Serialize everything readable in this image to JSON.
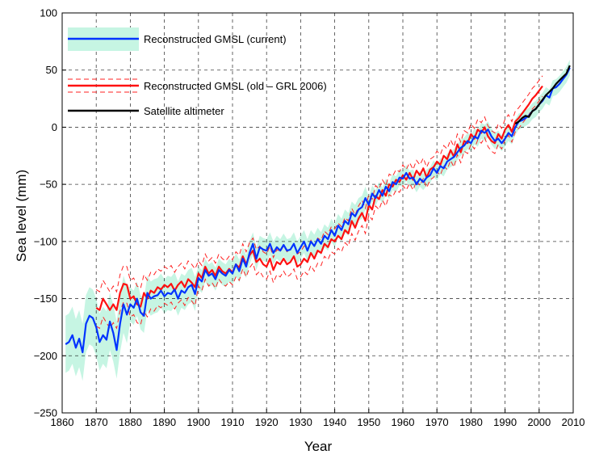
{
  "chart_data": {
    "type": "line",
    "title": "",
    "xlabel": "Year",
    "ylabel": "Sea level (mm)",
    "xlim": [
      1860,
      2010
    ],
    "ylim": [
      -250,
      100
    ],
    "xticks": [
      1860,
      1870,
      1880,
      1890,
      1900,
      1910,
      1920,
      1930,
      1940,
      1950,
      1960,
      1970,
      1980,
      1990,
      2000,
      2010
    ],
    "yticks": [
      -250,
      -200,
      -150,
      -100,
      -50,
      0,
      50,
      100
    ],
    "xtick_labels": [
      "1860",
      "1870",
      "1880",
      "1890",
      "1900",
      "1910",
      "1920",
      "1930",
      "1940",
      "1950",
      "1960",
      "1970",
      "1980",
      "1990",
      "2000",
      "2010"
    ],
    "ytick_labels": [
      "−250",
      "−200",
      "−150",
      "−100",
      "−50",
      "0",
      "50",
      "100"
    ],
    "grid": true,
    "legend_position": "top-left",
    "legend": [
      {
        "label": "Reconstructed GMSL (current)",
        "series": "current"
      },
      {
        "label": "Reconstructed GMSL (old – GRL 2006)",
        "series": "old"
      },
      {
        "label": "Satellite altimeter",
        "series": "altimeter"
      }
    ],
    "series": [
      {
        "key": "current",
        "color": "#0033ff",
        "band_color": "#c6f5e3",
        "x": [
          1861,
          1862,
          1863,
          1864,
          1865,
          1866,
          1867,
          1868,
          1869,
          1870,
          1871,
          1872,
          1873,
          1874,
          1875,
          1876,
          1877,
          1878,
          1879,
          1880,
          1881,
          1882,
          1883,
          1884,
          1885,
          1886,
          1887,
          1888,
          1889,
          1890,
          1891,
          1892,
          1893,
          1894,
          1895,
          1896,
          1897,
          1898,
          1899,
          1900,
          1901,
          1902,
          1903,
          1904,
          1905,
          1906,
          1907,
          1908,
          1909,
          1910,
          1911,
          1912,
          1913,
          1914,
          1915,
          1916,
          1917,
          1918,
          1919,
          1920,
          1921,
          1922,
          1923,
          1924,
          1925,
          1926,
          1927,
          1928,
          1929,
          1930,
          1931,
          1932,
          1933,
          1934,
          1935,
          1936,
          1937,
          1938,
          1939,
          1940,
          1941,
          1942,
          1943,
          1944,
          1945,
          1946,
          1947,
          1948,
          1949,
          1950,
          1951,
          1952,
          1953,
          1954,
          1955,
          1956,
          1957,
          1958,
          1959,
          1960,
          1961,
          1962,
          1963,
          1964,
          1965,
          1966,
          1967,
          1968,
          1969,
          1970,
          1971,
          1972,
          1973,
          1974,
          1975,
          1976,
          1977,
          1978,
          1979,
          1980,
          1981,
          1982,
          1983,
          1984,
          1985,
          1986,
          1987,
          1988,
          1989,
          1990,
          1991,
          1992,
          1993,
          1994,
          1995,
          1996,
          1997,
          1998,
          1999,
          2000,
          2001,
          2002,
          2003,
          2004,
          2005,
          2006,
          2007,
          2008,
          2009
        ],
        "values": [
          -190,
          -188,
          -182,
          -193,
          -185,
          -197,
          -172,
          -165,
          -167,
          -175,
          -188,
          -182,
          -186,
          -170,
          -180,
          -195,
          -172,
          -155,
          -164,
          -155,
          -158,
          -150,
          -162,
          -165,
          -145,
          -150,
          -148,
          -147,
          -143,
          -148,
          -145,
          -146,
          -142,
          -150,
          -143,
          -145,
          -140,
          -138,
          -146,
          -132,
          -135,
          -125,
          -130,
          -128,
          -133,
          -125,
          -128,
          -130,
          -125,
          -128,
          -120,
          -126,
          -115,
          -122,
          -110,
          -102,
          -115,
          -105,
          -107,
          -108,
          -102,
          -110,
          -105,
          -108,
          -103,
          -108,
          -107,
          -102,
          -110,
          -105,
          -100,
          -108,
          -100,
          -104,
          -98,
          -102,
          -95,
          -98,
          -90,
          -95,
          -86,
          -90,
          -82,
          -85,
          -75,
          -78,
          -72,
          -70,
          -62,
          -68,
          -58,
          -62,
          -55,
          -60,
          -52,
          -56,
          -48,
          -50,
          -44,
          -45,
          -40,
          -45,
          -44,
          -50,
          -45,
          -48,
          -44,
          -42,
          -36,
          -40,
          -34,
          -36,
          -30,
          -28,
          -26,
          -22,
          -18,
          -16,
          -12,
          -14,
          -8,
          -10,
          -3,
          -5,
          -2,
          -8,
          -12,
          -10,
          -14,
          -10,
          -5,
          -8,
          0,
          5,
          6,
          8,
          10,
          14,
          16,
          20,
          23,
          28,
          26,
          34,
          35,
          38,
          42,
          46,
          52
        ]
      },
      {
        "key": "old",
        "color": "#ff1111",
        "band_color": "#ff2222",
        "x": [
          1870,
          1871,
          1872,
          1873,
          1874,
          1875,
          1876,
          1877,
          1878,
          1879,
          1880,
          1881,
          1882,
          1883,
          1884,
          1885,
          1886,
          1887,
          1888,
          1889,
          1890,
          1891,
          1892,
          1893,
          1894,
          1895,
          1896,
          1897,
          1898,
          1899,
          1900,
          1901,
          1902,
          1903,
          1904,
          1905,
          1906,
          1907,
          1908,
          1909,
          1910,
          1911,
          1912,
          1913,
          1914,
          1915,
          1916,
          1917,
          1918,
          1919,
          1920,
          1921,
          1922,
          1923,
          1924,
          1925,
          1926,
          1927,
          1928,
          1929,
          1930,
          1931,
          1932,
          1933,
          1934,
          1935,
          1936,
          1937,
          1938,
          1939,
          1940,
          1941,
          1942,
          1943,
          1944,
          1945,
          1946,
          1947,
          1948,
          1949,
          1950,
          1951,
          1952,
          1953,
          1954,
          1955,
          1956,
          1957,
          1958,
          1959,
          1960,
          1961,
          1962,
          1963,
          1964,
          1965,
          1966,
          1967,
          1968,
          1969,
          1970,
          1971,
          1972,
          1973,
          1974,
          1975,
          1976,
          1977,
          1978,
          1979,
          1980,
          1981,
          1982,
          1983,
          1984,
          1985,
          1986,
          1987,
          1988,
          1989,
          1990,
          1991,
          1992,
          1993,
          1994,
          1995,
          1996,
          1997,
          1998,
          1999,
          2000,
          2001
        ],
        "values": [
          -158,
          -160,
          -150,
          -155,
          -160,
          -155,
          -160,
          -145,
          -137,
          -138,
          -150,
          -148,
          -155,
          -157,
          -145,
          -150,
          -143,
          -145,
          -140,
          -142,
          -138,
          -140,
          -137,
          -143,
          -138,
          -135,
          -140,
          -133,
          -136,
          -140,
          -128,
          -132,
          -122,
          -128,
          -125,
          -130,
          -122,
          -126,
          -128,
          -124,
          -127,
          -120,
          -123,
          -113,
          -120,
          -112,
          -108,
          -118,
          -115,
          -120,
          -122,
          -115,
          -125,
          -118,
          -120,
          -115,
          -120,
          -118,
          -113,
          -122,
          -120,
          -115,
          -118,
          -110,
          -115,
          -108,
          -110,
          -102,
          -105,
          -98,
          -100,
          -95,
          -98,
          -90,
          -93,
          -82,
          -88,
          -80,
          -75,
          -82,
          -68,
          -72,
          -60,
          -63,
          -55,
          -60,
          -50,
          -52,
          -46,
          -48,
          -42,
          -46,
          -40,
          -46,
          -38,
          -42,
          -36,
          -44,
          -37,
          -35,
          -30,
          -33,
          -25,
          -28,
          -20,
          -26,
          -15,
          -22,
          -12,
          -14,
          -6,
          -10,
          -2,
          -5,
          0,
          -8,
          -12,
          -14,
          -6,
          -10,
          -2,
          2,
          -4,
          5,
          8,
          12,
          16,
          20,
          25,
          28,
          32,
          36
        ]
      },
      {
        "key": "altimeter",
        "color": "#000000",
        "x": [
          1993,
          1994,
          1995,
          1996,
          1997,
          1998,
          1999,
          2000,
          2001,
          2002,
          2003,
          2004,
          2005,
          2006,
          2007,
          2008,
          2009
        ],
        "values": [
          3,
          5,
          8,
          10,
          9,
          14,
          16,
          20,
          24,
          28,
          31,
          34,
          38,
          41,
          44,
          47,
          54
        ]
      }
    ]
  }
}
